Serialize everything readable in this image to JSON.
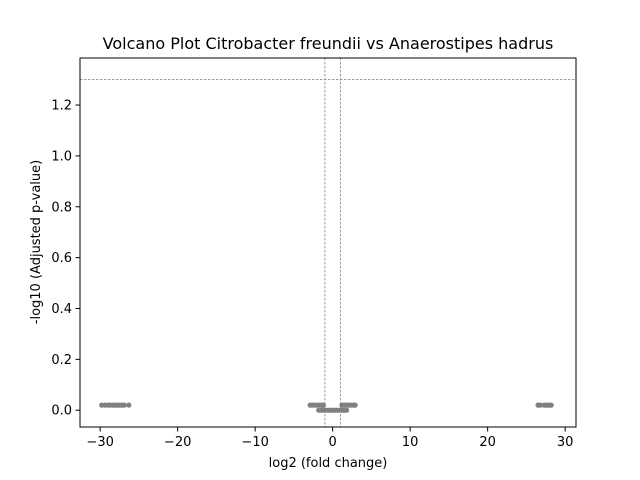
{
  "chart_data": {
    "type": "scatter",
    "title": "Volcano Plot Citrobacter freundii vs Anaerostipes hadrus",
    "xlabel": "log2 (fold change)",
    "ylabel": "-log10 (Adjusted p-value)",
    "xlim": [
      -32.6,
      31.4
    ],
    "ylim": [
      -0.066,
      1.385
    ],
    "xticks": [
      -30,
      -20,
      -10,
      0,
      10,
      20,
      30
    ],
    "xtick_labels": [
      "−30",
      "−20",
      "−10",
      "0",
      "10",
      "20",
      "30"
    ],
    "yticks": [
      0.0,
      0.2,
      0.4,
      0.6,
      0.8,
      1.0,
      1.2
    ],
    "ytick_labels": [
      "0.0",
      "0.2",
      "0.4",
      "0.6",
      "0.8",
      "1.0",
      "1.2"
    ],
    "grid": false,
    "legend": "none",
    "point_color": "#808080",
    "threshold_color": "#808080",
    "threshold_lines": {
      "horizontal_y": [
        1.301
      ],
      "vertical_x": [
        -1,
        1
      ]
    },
    "points": [
      [
        -29.8,
        0.02
      ],
      [
        -29.4,
        0.02
      ],
      [
        -29.0,
        0.02
      ],
      [
        -28.7,
        0.02
      ],
      [
        -28.4,
        0.02
      ],
      [
        -28.1,
        0.02
      ],
      [
        -27.8,
        0.02
      ],
      [
        -27.5,
        0.02
      ],
      [
        -27.2,
        0.02
      ],
      [
        -26.9,
        0.02
      ],
      [
        -26.3,
        0.02
      ],
      [
        -2.9,
        0.02
      ],
      [
        -2.6,
        0.02
      ],
      [
        -2.3,
        0.02
      ],
      [
        -2.0,
        0.02
      ],
      [
        -1.7,
        0.02
      ],
      [
        -1.4,
        0.02
      ],
      [
        -1.2,
        0.02
      ],
      [
        -1.8,
        0.0
      ],
      [
        -1.5,
        0.0
      ],
      [
        -1.2,
        0.0
      ],
      [
        -0.9,
        0.0
      ],
      [
        -0.6,
        0.0
      ],
      [
        -0.3,
        0.0
      ],
      [
        0.0,
        0.0
      ],
      [
        0.3,
        0.0
      ],
      [
        0.6,
        0.0
      ],
      [
        0.9,
        0.0
      ],
      [
        1.2,
        0.0
      ],
      [
        1.5,
        0.0
      ],
      [
        1.8,
        0.0
      ],
      [
        1.2,
        0.02
      ],
      [
        1.5,
        0.02
      ],
      [
        1.8,
        0.02
      ],
      [
        2.1,
        0.02
      ],
      [
        2.4,
        0.02
      ],
      [
        2.7,
        0.02
      ],
      [
        2.9,
        0.02
      ],
      [
        26.5,
        0.02
      ],
      [
        26.8,
        0.02
      ],
      [
        27.3,
        0.02
      ],
      [
        27.6,
        0.02
      ],
      [
        27.9,
        0.02
      ],
      [
        28.2,
        0.02
      ]
    ]
  }
}
